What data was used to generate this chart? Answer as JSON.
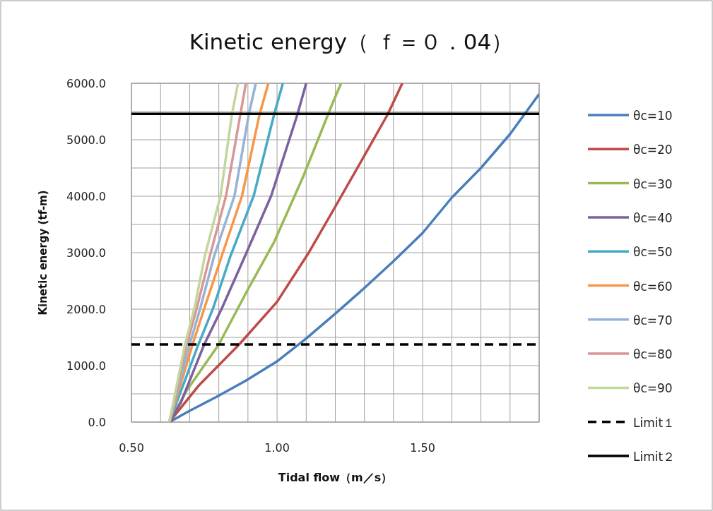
{
  "chart_data": {
    "type": "line",
    "title": "Kinetic energy（ ｆ＝０．04）",
    "xlabel": "Tidal flow（m／s）",
    "ylabel": "Kinetic energy (tf-m)",
    "xlim": [
      0.5,
      1.9
    ],
    "ylim": [
      0,
      6000
    ],
    "xticks": [
      {
        "value": 0.5,
        "label": "0.50"
      },
      {
        "value": 0.6,
        "label": null
      },
      {
        "value": 0.7,
        "label": null
      },
      {
        "value": 0.8,
        "label": null
      },
      {
        "value": 0.9,
        "label": null
      },
      {
        "value": 1.0,
        "label": "1.00"
      },
      {
        "value": 1.1,
        "label": null
      },
      {
        "value": 1.2,
        "label": null
      },
      {
        "value": 1.3,
        "label": null
      },
      {
        "value": 1.4,
        "label": null
      },
      {
        "value": 1.5,
        "label": "1.50"
      },
      {
        "value": 1.6,
        "label": null
      },
      {
        "value": 1.7,
        "label": null
      },
      {
        "value": 1.8,
        "label": null
      },
      {
        "value": 1.9,
        "label": null
      }
    ],
    "yticks": [
      {
        "value": 0,
        "label": "0.0"
      },
      {
        "value": 500,
        "label": null
      },
      {
        "value": 1000,
        "label": "1000.0"
      },
      {
        "value": 1500,
        "label": null
      },
      {
        "value": 2000,
        "label": "2000.0"
      },
      {
        "value": 2500,
        "label": null
      },
      {
        "value": 3000,
        "label": "3000.0"
      },
      {
        "value": 3500,
        "label": null
      },
      {
        "value": 4000,
        "label": "4000.0"
      },
      {
        "value": 4500,
        "label": null
      },
      {
        "value": 5000,
        "label": "5000.0"
      },
      {
        "value": 5500,
        "label": null
      },
      {
        "value": 6000,
        "label": "6000.0"
      }
    ],
    "grid": true,
    "legend": "right",
    "series": [
      {
        "name": "θc=10",
        "color": "#4a7ebb",
        "x": [
          0.63,
          0.7,
          0.79,
          0.89,
          1.0,
          1.1,
          1.2,
          1.3,
          1.4,
          1.5,
          1.6,
          1.7,
          1.8,
          1.9
        ],
        "values": [
          0,
          200,
          440,
          725,
          1075,
          1480,
          1920,
          2375,
          2850,
          3350,
          3975,
          4500,
          5100,
          5810
        ]
      },
      {
        "name": "θc=20",
        "color": "#be4b48",
        "x": [
          0.63,
          0.73,
          0.87,
          1.0,
          1.11,
          1.19,
          1.3,
          1.38,
          1.43
        ],
        "values": [
          0,
          640,
          1375,
          2130,
          3010,
          3725,
          4720,
          5450,
          6000
        ]
      },
      {
        "name": "θc=30",
        "color": "#98b954",
        "x": [
          0.63,
          0.69,
          0.8,
          0.9,
          0.99,
          1.09,
          1.19,
          1.22
        ],
        "values": [
          0,
          560,
          1375,
          2350,
          3190,
          4350,
          5640,
          6000
        ]
      },
      {
        "name": "θc=40",
        "color": "#7d60a0",
        "x": [
          0.63,
          0.67,
          0.75,
          0.81,
          0.89,
          0.98,
          1.07,
          1.1
        ],
        "values": [
          0,
          350,
          1375,
          2010,
          2940,
          4010,
          5450,
          6000
        ]
      },
      {
        "name": "θc=50",
        "color": "#46aac5",
        "x": [
          0.63,
          0.73,
          0.78,
          0.84,
          0.92,
          0.99,
          1.02
        ],
        "values": [
          0,
          1375,
          2010,
          2940,
          4010,
          5450,
          6000
        ]
      },
      {
        "name": "θc=60",
        "color": "#f79646",
        "x": [
          0.63,
          0.71,
          0.75,
          0.81,
          0.88,
          0.94,
          0.97
        ],
        "values": [
          0,
          1375,
          2010,
          2940,
          4010,
          5450,
          6000
        ]
      },
      {
        "name": "θc=70",
        "color": "#95b3d7",
        "x": [
          0.63,
          0.7,
          0.736,
          0.784,
          0.854,
          0.903,
          0.927
        ],
        "values": [
          0,
          1375,
          2010,
          2940,
          4010,
          5450,
          6000
        ]
      },
      {
        "name": "θc=80",
        "color": "#d99694",
        "x": [
          0.63,
          0.69,
          0.724,
          0.769,
          0.825,
          0.874,
          0.893
        ],
        "values": [
          0,
          1375,
          2010,
          2940,
          4010,
          5450,
          6000
        ]
      },
      {
        "name": "θc=90",
        "color": "#c3d69b",
        "x": [
          0.63,
          0.684,
          0.716,
          0.752,
          0.806,
          0.845,
          0.866
        ],
        "values": [
          0,
          1375,
          2010,
          2940,
          4010,
          5450,
          6000
        ]
      },
      {
        "name": "Limit１",
        "color": "#000000",
        "line_style": "dashed",
        "x": [
          0.5,
          1.9
        ],
        "values": [
          1375,
          1375
        ]
      },
      {
        "name": "Limit２",
        "color": "#000000",
        "line_style": "solid",
        "x": [
          0.5,
          1.9
        ],
        "values": [
          5460,
          5460
        ]
      }
    ]
  }
}
